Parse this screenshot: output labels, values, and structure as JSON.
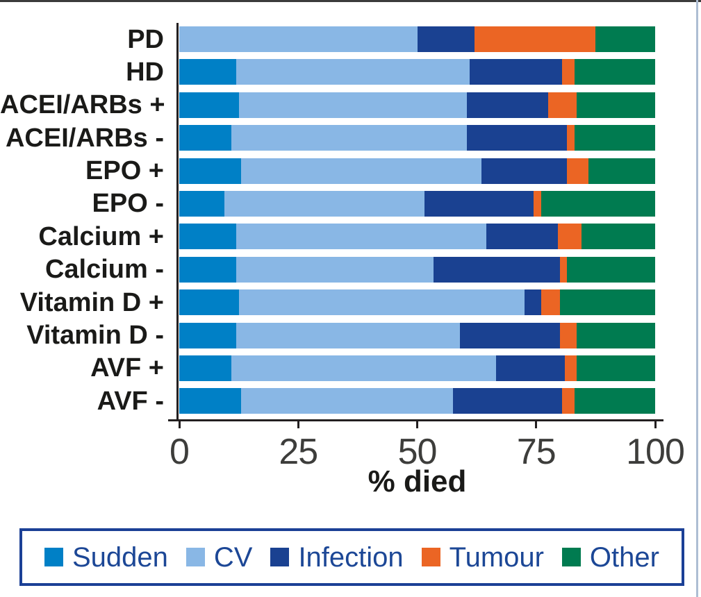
{
  "chart_data": {
    "type": "bar",
    "variant": "horizontal-stacked-100pct",
    "title": "",
    "xlabel": "% died",
    "ylabel": "",
    "xlim": [
      0,
      100
    ],
    "x_ticks": [
      0,
      25,
      50,
      75,
      100
    ],
    "grid": false,
    "legend_position": "bottom-boxed",
    "categories": [
      "PD",
      "HD",
      "ACEI/ARBs +",
      "ACEI/ARBs -",
      "EPO +",
      "EPO -",
      "Calcium +",
      "Calcium -",
      "Vitamin D +",
      "Vitamin D -",
      "AVF +",
      "AVF -"
    ],
    "series": [
      {
        "name": "Sudden",
        "color": "#0080C6",
        "values": [
          0,
          12,
          12.5,
          11,
          13,
          9.5,
          12,
          12,
          12.5,
          12,
          11,
          13
        ]
      },
      {
        "name": "CV",
        "color": "#89B7E5",
        "values": [
          50,
          49,
          48,
          49.5,
          50.5,
          42,
          52.5,
          41.5,
          60,
          47,
          55.5,
          44.5
        ]
      },
      {
        "name": "Infection",
        "color": "#1A4191",
        "values": [
          12,
          19.5,
          17,
          21,
          18,
          23,
          15,
          26.5,
          3.5,
          21,
          14.5,
          23
        ]
      },
      {
        "name": "Tumour",
        "color": "#EB6524",
        "values": [
          25.5,
          2.5,
          6,
          1.5,
          4.5,
          1.5,
          5,
          1.5,
          4,
          3.5,
          2.5,
          2.5
        ]
      },
      {
        "name": "Other",
        "color": "#007B50",
        "values": [
          12.5,
          17,
          16.5,
          17,
          14,
          24,
          15.5,
          18.5,
          20,
          16.5,
          16.5,
          17
        ]
      }
    ]
  },
  "colors": {
    "axis": "#231F20",
    "tick_label": "#3D3D3B",
    "category_label": "#1A1A18",
    "legend_border": "#1B4096",
    "legend_text": "#1C4796",
    "background": "#FFFFFF"
  }
}
